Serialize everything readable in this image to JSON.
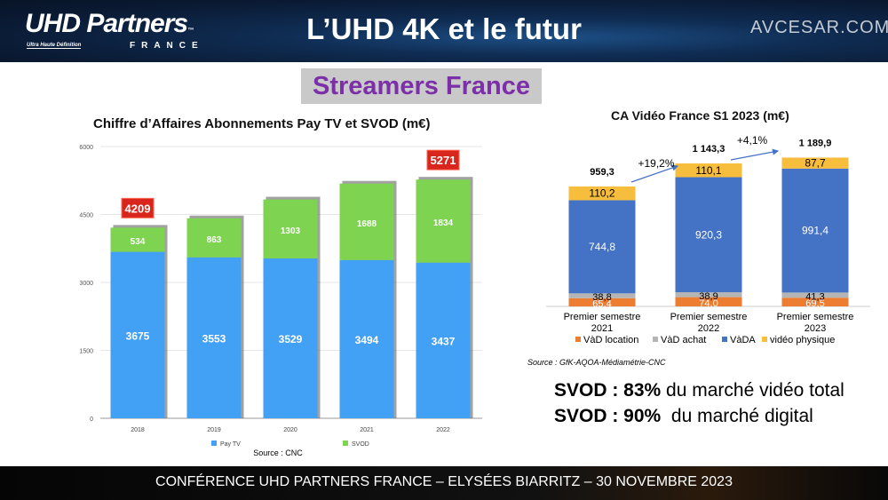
{
  "header": {
    "logo_main": "UHD Partners",
    "logo_tm": "™",
    "logo_tagline": "Ultra Haute Définition",
    "logo_country": "FRANCE",
    "title": "L’UHD 4K et le futur",
    "watermark": "AVCESAR.COM"
  },
  "subtitle": "Streamers France",
  "notes": [
    {
      "bold": "SVOD : 83%",
      "text": " du marché vidéo total"
    },
    {
      "bold": "SVOD : 90%",
      "text": "  du marché digital"
    }
  ],
  "footer": "CONFÉRENCE UHD PARTNERS FRANCE – ELYSÉES BIARRITZ – 30 NOVEMBRE 2023",
  "chart_data": [
    {
      "type": "bar",
      "stacked": true,
      "title": "Chiffre d’Affaires Abonnements Pay TV et SVOD (m€)",
      "categories": [
        "2018",
        "2019",
        "2020",
        "2021",
        "2022"
      ],
      "series": [
        {
          "name": "Pay TV",
          "color": "#42a0f5",
          "values": [
            3675,
            3553,
            3529,
            3494,
            3437
          ]
        },
        {
          "name": "SVOD",
          "color": "#7ed350",
          "values": [
            534,
            863,
            1303,
            1688,
            1834
          ]
        }
      ],
      "highlighted_totals": [
        {
          "category": "2018",
          "label": "4209"
        },
        {
          "category": "2022",
          "label": "5271"
        }
      ],
      "highlight_color": "#d9261c",
      "yticks": [
        "0",
        "1500",
        "3000",
        "4500",
        "6000"
      ],
      "ylim": [
        0,
        6000
      ],
      "grid": true,
      "legend": "bottom",
      "source": "Source : CNC"
    },
    {
      "type": "bar",
      "stacked": true,
      "title": "CA Vidéo France S1 2023 (m€)",
      "categories": [
        "Premier semestre|2021",
        "Premier semestre|2022",
        "Premier semestre|2023"
      ],
      "series": [
        {
          "name": "VàD location",
          "color": "#ed7d31",
          "values": [
            "65,4",
            "74,0",
            "69,5"
          ]
        },
        {
          "name": "VàD achat",
          "color": "#b5b5b5",
          "values": [
            "38,8",
            "38,9",
            "41,3"
          ]
        },
        {
          "name": "VàDA",
          "color": "#4472c4",
          "values": [
            "744,8",
            "920,3",
            "991,4"
          ]
        },
        {
          "name": "vidéo physique",
          "color": "#f7bd3c",
          "values": [
            "110,2",
            "110,1",
            "87,7"
          ]
        }
      ],
      "totals": [
        "959,3",
        "1 143,3",
        "1 189,9"
      ],
      "growth": [
        "+19,2%",
        "+4,1%"
      ],
      "legend": "bottom",
      "grid": false,
      "source": "Source : GfK-AQOA-Médiamétrie-CNC"
    }
  ]
}
